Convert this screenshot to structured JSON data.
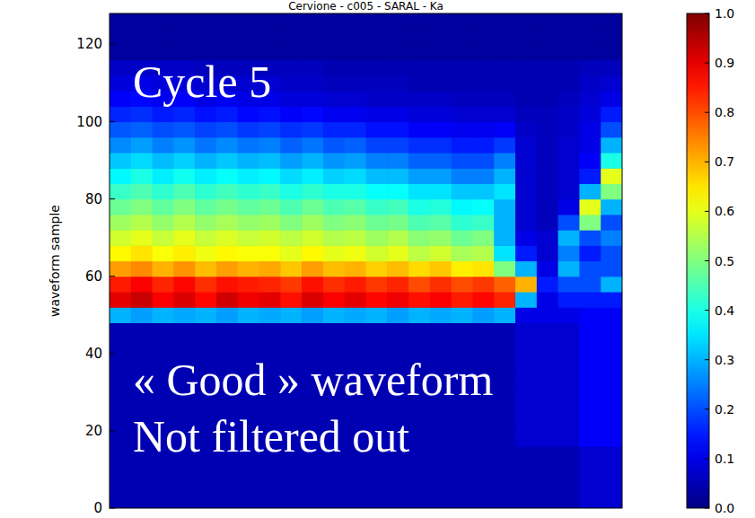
{
  "chart_data": {
    "type": "heatmap",
    "title": "Cervione - c005 - SARAL - Ka",
    "y_label": "waveform sample",
    "annotations": [
      "Cycle 5",
      "« Good » waveform",
      "Not filtered out"
    ],
    "ylim": [
      0,
      128
    ],
    "yticks": [
      0,
      20,
      40,
      60,
      80,
      100,
      120
    ],
    "tick_labels": "y",
    "ybins": [
      0,
      4,
      8,
      12,
      16,
      20,
      24,
      28,
      32,
      36,
      40,
      44,
      48,
      52,
      56,
      60,
      64,
      68,
      72,
      76,
      80,
      84,
      88,
      92,
      96,
      100,
      104,
      108,
      112,
      116,
      120,
      124,
      128
    ],
    "cells": [
      [
        0.05,
        0.05,
        0.05,
        0.05,
        0.05,
        0.05,
        0.05,
        0.05,
        0.05,
        0.05,
        0.05,
        0.05,
        0.05,
        0.05,
        0.05,
        0.05,
        0.05,
        0.05,
        0.05,
        0.05,
        0.05,
        0.05,
        0.08,
        0.08
      ],
      [
        0.05,
        0.05,
        0.05,
        0.05,
        0.05,
        0.05,
        0.05,
        0.05,
        0.05,
        0.05,
        0.05,
        0.05,
        0.05,
        0.05,
        0.05,
        0.05,
        0.05,
        0.05,
        0.05,
        0.05,
        0.05,
        0.05,
        0.08,
        0.08
      ],
      [
        0.05,
        0.05,
        0.05,
        0.05,
        0.05,
        0.05,
        0.05,
        0.05,
        0.05,
        0.05,
        0.05,
        0.05,
        0.05,
        0.05,
        0.05,
        0.05,
        0.05,
        0.05,
        0.05,
        0.05,
        0.05,
        0.05,
        0.08,
        0.08
      ],
      [
        0.05,
        0.05,
        0.05,
        0.05,
        0.05,
        0.05,
        0.05,
        0.05,
        0.05,
        0.05,
        0.05,
        0.05,
        0.05,
        0.05,
        0.05,
        0.05,
        0.05,
        0.05,
        0.05,
        0.05,
        0.05,
        0.05,
        0.08,
        0.08
      ],
      [
        0.05,
        0.05,
        0.05,
        0.05,
        0.05,
        0.05,
        0.05,
        0.05,
        0.05,
        0.05,
        0.05,
        0.05,
        0.05,
        0.05,
        0.05,
        0.05,
        0.05,
        0.05,
        0.05,
        0.08,
        0.08,
        0.08,
        0.12,
        0.12
      ],
      [
        0.05,
        0.05,
        0.05,
        0.05,
        0.05,
        0.05,
        0.05,
        0.05,
        0.05,
        0.05,
        0.05,
        0.05,
        0.05,
        0.05,
        0.05,
        0.05,
        0.05,
        0.05,
        0.05,
        0.08,
        0.08,
        0.08,
        0.12,
        0.12
      ],
      [
        0.05,
        0.05,
        0.05,
        0.05,
        0.05,
        0.05,
        0.05,
        0.05,
        0.05,
        0.05,
        0.05,
        0.05,
        0.05,
        0.05,
        0.05,
        0.05,
        0.05,
        0.05,
        0.05,
        0.08,
        0.08,
        0.08,
        0.12,
        0.12
      ],
      [
        0.05,
        0.05,
        0.05,
        0.05,
        0.05,
        0.05,
        0.05,
        0.05,
        0.05,
        0.05,
        0.05,
        0.05,
        0.05,
        0.05,
        0.05,
        0.05,
        0.05,
        0.05,
        0.05,
        0.08,
        0.08,
        0.08,
        0.12,
        0.12
      ],
      [
        0.05,
        0.05,
        0.05,
        0.05,
        0.05,
        0.05,
        0.05,
        0.05,
        0.05,
        0.05,
        0.05,
        0.05,
        0.05,
        0.05,
        0.05,
        0.05,
        0.05,
        0.05,
        0.05,
        0.08,
        0.08,
        0.08,
        0.12,
        0.12
      ],
      [
        0.05,
        0.05,
        0.05,
        0.05,
        0.05,
        0.05,
        0.05,
        0.05,
        0.05,
        0.05,
        0.05,
        0.05,
        0.05,
        0.05,
        0.05,
        0.05,
        0.05,
        0.05,
        0.05,
        0.08,
        0.08,
        0.08,
        0.12,
        0.12
      ],
      [
        0.05,
        0.05,
        0.05,
        0.05,
        0.05,
        0.05,
        0.05,
        0.05,
        0.05,
        0.05,
        0.05,
        0.05,
        0.05,
        0.05,
        0.05,
        0.05,
        0.05,
        0.05,
        0.05,
        0.08,
        0.08,
        0.08,
        0.12,
        0.12
      ],
      [
        0.05,
        0.05,
        0.05,
        0.05,
        0.05,
        0.05,
        0.05,
        0.05,
        0.05,
        0.05,
        0.05,
        0.05,
        0.05,
        0.05,
        0.05,
        0.05,
        0.05,
        0.05,
        0.05,
        0.08,
        0.08,
        0.08,
        0.12,
        0.12
      ],
      [
        0.3,
        0.28,
        0.3,
        0.29,
        0.3,
        0.28,
        0.3,
        0.29,
        0.3,
        0.28,
        0.3,
        0.29,
        0.3,
        0.28,
        0.3,
        0.29,
        0.3,
        0.28,
        0.3,
        0.1,
        0.1,
        0.1,
        0.12,
        0.12
      ],
      [
        0.9,
        0.93,
        0.88,
        0.91,
        0.87,
        0.92,
        0.89,
        0.9,
        0.86,
        0.91,
        0.88,
        0.9,
        0.87,
        0.89,
        0.86,
        0.88,
        0.85,
        0.87,
        0.84,
        0.3,
        0.1,
        0.15,
        0.15,
        0.15
      ],
      [
        0.85,
        0.88,
        0.84,
        0.87,
        0.83,
        0.86,
        0.85,
        0.84,
        0.82,
        0.86,
        0.83,
        0.85,
        0.82,
        0.84,
        0.8,
        0.83,
        0.8,
        0.82,
        0.78,
        0.7,
        0.15,
        0.2,
        0.2,
        0.3
      ],
      [
        0.72,
        0.74,
        0.7,
        0.73,
        0.69,
        0.72,
        0.7,
        0.71,
        0.68,
        0.72,
        0.69,
        0.7,
        0.67,
        0.69,
        0.66,
        0.68,
        0.64,
        0.65,
        0.5,
        0.3,
        0.1,
        0.3,
        0.2,
        0.2
      ],
      [
        0.63,
        0.65,
        0.62,
        0.64,
        0.61,
        0.63,
        0.62,
        0.62,
        0.6,
        0.63,
        0.6,
        0.61,
        0.58,
        0.6,
        0.56,
        0.58,
        0.54,
        0.55,
        0.35,
        0.15,
        0.08,
        0.25,
        0.15,
        0.2
      ],
      [
        0.58,
        0.6,
        0.57,
        0.6,
        0.57,
        0.59,
        0.57,
        0.58,
        0.56,
        0.58,
        0.55,
        0.56,
        0.53,
        0.55,
        0.51,
        0.52,
        0.48,
        0.5,
        0.3,
        0.1,
        0.08,
        0.3,
        0.2,
        0.25
      ],
      [
        0.53,
        0.55,
        0.52,
        0.55,
        0.52,
        0.54,
        0.52,
        0.53,
        0.5,
        0.53,
        0.5,
        0.51,
        0.48,
        0.49,
        0.45,
        0.46,
        0.42,
        0.43,
        0.3,
        0.08,
        0.06,
        0.2,
        0.5,
        0.2
      ],
      [
        0.48,
        0.5,
        0.47,
        0.5,
        0.47,
        0.49,
        0.47,
        0.48,
        0.45,
        0.48,
        0.45,
        0.46,
        0.43,
        0.44,
        0.4,
        0.41,
        0.37,
        0.38,
        0.3,
        0.08,
        0.06,
        0.1,
        0.6,
        0.3
      ],
      [
        0.43,
        0.45,
        0.42,
        0.45,
        0.42,
        0.44,
        0.42,
        0.43,
        0.4,
        0.42,
        0.4,
        0.4,
        0.38,
        0.38,
        0.35,
        0.35,
        0.32,
        0.32,
        0.35,
        0.08,
        0.06,
        0.08,
        0.3,
        0.5
      ],
      [
        0.37,
        0.4,
        0.36,
        0.39,
        0.36,
        0.38,
        0.36,
        0.37,
        0.34,
        0.36,
        0.33,
        0.34,
        0.31,
        0.31,
        0.28,
        0.28,
        0.25,
        0.25,
        0.3,
        0.08,
        0.06,
        0.08,
        0.15,
        0.6
      ],
      [
        0.32,
        0.34,
        0.31,
        0.33,
        0.3,
        0.32,
        0.3,
        0.31,
        0.28,
        0.3,
        0.27,
        0.28,
        0.25,
        0.25,
        0.22,
        0.22,
        0.2,
        0.2,
        0.25,
        0.08,
        0.06,
        0.08,
        0.12,
        0.4
      ],
      [
        0.26,
        0.28,
        0.25,
        0.27,
        0.24,
        0.26,
        0.24,
        0.25,
        0.22,
        0.24,
        0.21,
        0.22,
        0.19,
        0.19,
        0.17,
        0.17,
        0.15,
        0.15,
        0.18,
        0.08,
        0.06,
        0.08,
        0.1,
        0.3
      ],
      [
        0.21,
        0.22,
        0.2,
        0.21,
        0.19,
        0.2,
        0.18,
        0.19,
        0.17,
        0.18,
        0.16,
        0.16,
        0.14,
        0.14,
        0.12,
        0.12,
        0.11,
        0.11,
        0.12,
        0.07,
        0.06,
        0.07,
        0.1,
        0.2
      ],
      [
        0.16,
        0.17,
        0.15,
        0.16,
        0.14,
        0.15,
        0.13,
        0.14,
        0.12,
        0.13,
        0.11,
        0.11,
        0.1,
        0.1,
        0.09,
        0.09,
        0.08,
        0.08,
        0.08,
        0.06,
        0.06,
        0.07,
        0.09,
        0.15
      ],
      [
        0.12,
        0.13,
        0.11,
        0.12,
        0.1,
        0.11,
        0.1,
        0.1,
        0.09,
        0.09,
        0.08,
        0.08,
        0.07,
        0.07,
        0.07,
        0.07,
        0.06,
        0.06,
        0.06,
        0.05,
        0.05,
        0.06,
        0.08,
        0.1
      ],
      [
        0.09,
        0.1,
        0.09,
        0.09,
        0.08,
        0.08,
        0.08,
        0.08,
        0.07,
        0.07,
        0.06,
        0.06,
        0.06,
        0.06,
        0.05,
        0.05,
        0.05,
        0.05,
        0.05,
        0.05,
        0.05,
        0.05,
        0.07,
        0.08
      ],
      [
        0.07,
        0.07,
        0.07,
        0.07,
        0.06,
        0.06,
        0.06,
        0.06,
        0.06,
        0.06,
        0.05,
        0.05,
        0.05,
        0.05,
        0.05,
        0.05,
        0.05,
        0.05,
        0.05,
        0.05,
        0.05,
        0.05,
        0.06,
        0.06
      ],
      [
        0.03,
        0.03,
        0.03,
        0.03,
        0.03,
        0.03,
        0.03,
        0.03,
        0.03,
        0.03,
        0.03,
        0.03,
        0.03,
        0.03,
        0.03,
        0.03,
        0.03,
        0.03,
        0.03,
        0.03,
        0.03,
        0.03,
        0.03,
        0.03
      ],
      [
        0.03,
        0.03,
        0.03,
        0.03,
        0.03,
        0.03,
        0.03,
        0.03,
        0.03,
        0.03,
        0.03,
        0.03,
        0.03,
        0.03,
        0.03,
        0.03,
        0.03,
        0.03,
        0.03,
        0.03,
        0.03,
        0.03,
        0.03,
        0.03
      ],
      [
        0.03,
        0.03,
        0.03,
        0.03,
        0.03,
        0.03,
        0.03,
        0.03,
        0.03,
        0.03,
        0.03,
        0.03,
        0.03,
        0.03,
        0.03,
        0.03,
        0.03,
        0.03,
        0.03,
        0.03,
        0.03,
        0.03,
        0.03,
        0.03
      ]
    ],
    "colorbar_range": [
      0,
      1
    ],
    "colorbar_ticks": [
      {
        "value": 0,
        "label": "0.0"
      },
      {
        "value": 0.1,
        "label": "0.1"
      },
      {
        "value": 0.2,
        "label": "0.2"
      },
      {
        "value": 0.3,
        "label": "0.3"
      },
      {
        "value": 0.4,
        "label": "0.4"
      },
      {
        "value": 0.5,
        "label": "0.5"
      },
      {
        "value": 0.6,
        "label": "0.6"
      },
      {
        "value": 0.7,
        "label": "0.7"
      },
      {
        "value": 0.8,
        "label": "0.8"
      },
      {
        "value": 0.9,
        "label": "0.9"
      },
      {
        "value": 1,
        "label": "1.0"
      }
    ]
  }
}
